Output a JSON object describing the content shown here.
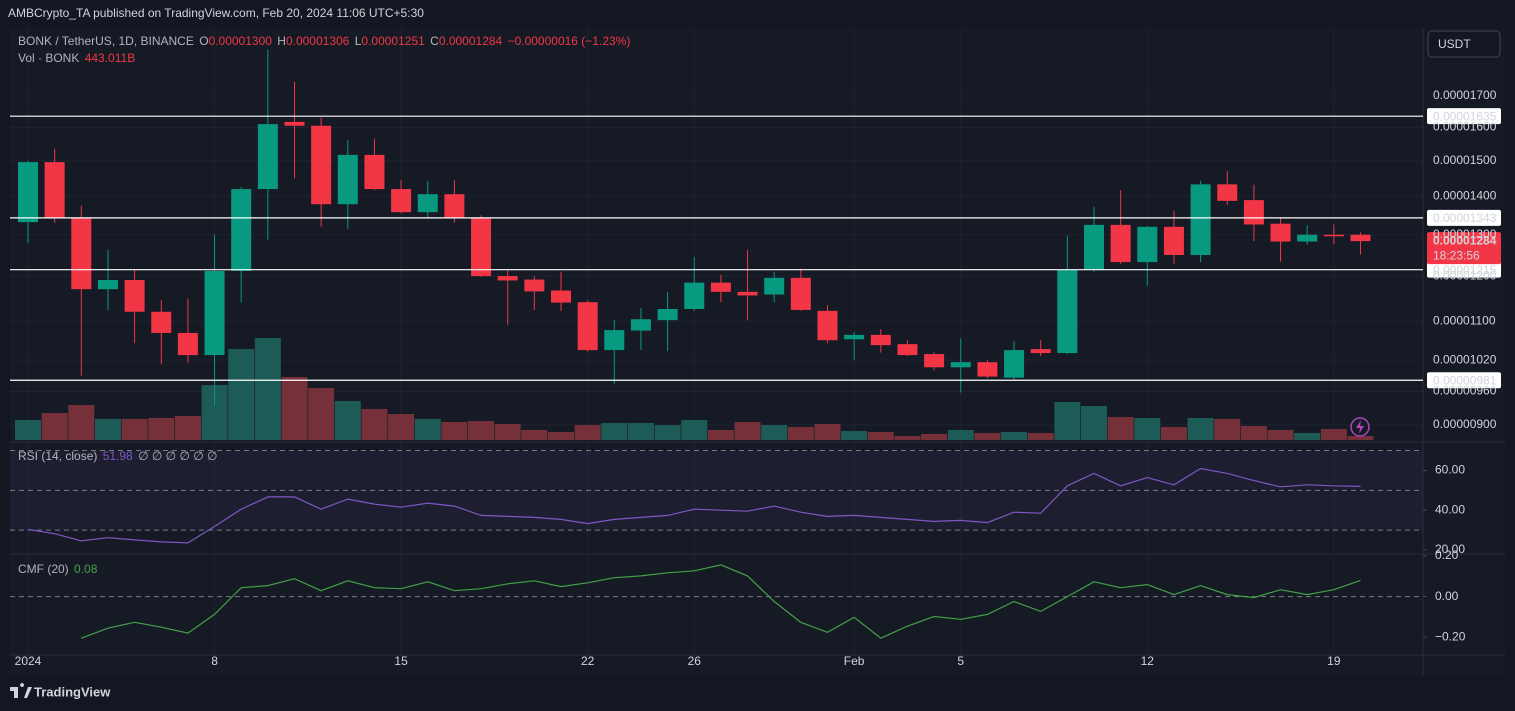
{
  "header": {
    "publisher": "AMBCrypto_TA published on TradingView.com, Feb 20, 2024 11:06 UTC+5:30"
  },
  "currency_button": "USDT",
  "footer": {
    "brand": "TradingView"
  },
  "chart_data": [
    {
      "type": "candlestick",
      "symbol": "BONK / TetherUS, 1D, BINANCE",
      "ohlc_keys": [
        "O",
        "H",
        "L",
        "C"
      ],
      "ohlc_labels": [
        "0.00001300",
        "0.00001306",
        "0.00001251",
        "0.00001284"
      ],
      "change_label": "−0.00000016 (−1.23%)",
      "categories": [
        "2024",
        null,
        null,
        null,
        null,
        null,
        null,
        "8",
        null,
        null,
        null,
        null,
        null,
        null,
        "15",
        null,
        null,
        null,
        null,
        null,
        null,
        "22",
        null,
        null,
        null,
        "26",
        null,
        null,
        null,
        null,
        null,
        "Feb",
        null,
        null,
        null,
        "5",
        null,
        null,
        null,
        null,
        null,
        null,
        "12",
        null,
        null,
        null,
        null,
        null,
        null,
        "19",
        null
      ],
      "open": [
        1.332e-05,
        1.496e-05,
        1.343e-05,
        1.17e-05,
        1.191e-05,
        1.12e-05,
        1.075e-05,
        1.03e-05,
        1.212e-05,
        1.42e-05,
        1.617e-05,
        1.605e-05,
        1.379e-05,
        1.517e-05,
        1.42e-05,
        1.358e-05,
        1.406e-05,
        1.343e-05,
        1.2e-05,
        1.192e-05,
        1.167e-05,
        1.141e-05,
        1.04e-05,
        1.08e-05,
        1.102e-05,
        1.126e-05,
        1.185e-05,
        1.164e-05,
        1.158e-05,
        1.196e-05,
        1.122e-05,
        1.062e-05,
        1.071e-05,
        1.052e-05,
        1.032e-05,
        1.006e-05,
        1.016e-05,
        9.86e-06,
        1.042e-05,
        1.034e-05,
        1.215e-05,
        1.325e-05,
        1.233e-05,
        1.32e-05,
        1.25e-05,
        1.433e-05,
        1.39e-05,
        1.328e-05,
        1.283e-05,
        1.3e-05,
        1.3e-05
      ],
      "high": [
        1.5e-05,
        1.535e-05,
        1.375e-05,
        1.262e-05,
        1.215e-05,
        1.145e-05,
        1.149e-05,
        1.3e-05,
        1.426e-05,
        1.86e-05,
        1.747e-05,
        1.63e-05,
        1.561e-05,
        1.565e-05,
        1.445e-05,
        1.442e-05,
        1.445e-05,
        1.35e-05,
        1.214e-05,
        1.2e-05,
        1.21e-05,
        1.145e-05,
        1.102e-05,
        1.128e-05,
        1.164e-05,
        1.245e-05,
        1.203e-05,
        1.262e-05,
        1.21e-05,
        1.217e-05,
        1.134e-05,
        1.077e-05,
        1.083e-05,
        1.06e-05,
        1.036e-05,
        1.064e-05,
        1.02e-05,
        1.058e-05,
        1.06e-05,
        1.298e-05,
        1.372e-05,
        1.417e-05,
        1.322e-05,
        1.362e-05,
        1.443e-05,
        1.47e-05,
        1.432e-05,
        1.343e-05,
        1.324e-05,
        1.326e-05,
        1.306e-05
      ],
      "low": [
        1.279e-05,
        1.33e-05,
        9.9e-06,
        1.124e-05,
        1.054e-05,
        1.012e-05,
        1.015e-05,
        9.35e-06,
        1.14e-05,
        1.287e-05,
        1.45e-05,
        1.32e-05,
        1.315e-05,
        1.417e-05,
        1.355e-05,
        1.343e-05,
        1.33e-05,
        1.198e-05,
        1.092e-05,
        1.124e-05,
        1.122e-05,
        1.037e-05,
        9.74e-06,
        1.04e-05,
        1.038e-05,
        1.122e-05,
        1.141e-05,
        1.102e-05,
        1.141e-05,
        1.122e-05,
        1.054e-05,
        1.02e-05,
        1.035e-05,
        1.028e-05,
        1e-05,
        9.58e-06,
        9.85e-06,
        9.81e-06,
        1.028e-05,
        1.032e-05,
        1.21e-05,
        1.229e-05,
        1.178e-05,
        1.228e-05,
        1.233e-05,
        1.377e-05,
        1.284e-05,
        1.234e-05,
        1.275e-05,
        1.277e-05,
        1.251e-05
      ],
      "close": [
        1.496e-05,
        1.343e-05,
        1.17e-05,
        1.191e-05,
        1.12e-05,
        1.075e-05,
        1.03e-05,
        1.212e-05,
        1.42e-05,
        1.61e-05,
        1.605e-05,
        1.379e-05,
        1.517e-05,
        1.42e-05,
        1.358e-05,
        1.406e-05,
        1.343e-05,
        1.2e-05,
        1.19e-05,
        1.165e-05,
        1.14e-05,
        1.04e-05,
        1.081e-05,
        1.104e-05,
        1.126e-05,
        1.185e-05,
        1.164e-05,
        1.156e-05,
        1.196e-05,
        1.124e-05,
        1.06e-05,
        1.071e-05,
        1.05e-05,
        1.03e-05,
        1.006e-05,
        1.016e-05,
        9.88e-06,
        1.04e-05,
        1.034e-05,
        1.215e-05,
        1.325e-05,
        1.233e-05,
        1.32e-05,
        1.25e-05,
        1.433e-05,
        1.388e-05,
        1.326e-05,
        1.283e-05,
        1.3e-05,
        1.296e-05,
        1.284e-05
      ],
      "up_color": "#089981",
      "down_color": "#f23645",
      "log_scale": true,
      "grid": true,
      "ylim": [
        8.74e-06,
        1.939e-05
      ],
      "yticks": [
        {
          "value": 1.7e-05,
          "label": "0.00001700"
        },
        {
          "value": 1.6e-05,
          "label": "0.00001600"
        },
        {
          "value": 1.5e-05,
          "label": "0.00001500"
        },
        {
          "value": 1.4e-05,
          "label": "0.00001400"
        },
        {
          "value": 1.3e-05,
          "label": "0.00001300"
        },
        {
          "value": 1.2e-05,
          "label": "0.00001200"
        },
        {
          "value": 1.1e-05,
          "label": "0.00001100"
        },
        {
          "value": 1.02e-05,
          "label": "0.00001020"
        },
        {
          "value": 9.6e-06,
          "label": "0.00000960"
        },
        {
          "value": 9e-06,
          "label": "0.00000900"
        }
      ],
      "levels": [
        {
          "value": 1.635e-05,
          "label": "0.00001635"
        },
        {
          "value": 1.343e-05,
          "label": "0.00001343"
        },
        {
          "value": 1.215e-05,
          "label": "0.00001215"
        },
        {
          "value": 9.81e-06,
          "label": "0.00000981"
        }
      ],
      "level_color": "#ffffff",
      "last_price": {
        "value": 1.284e-05,
        "label": "0.00001284",
        "countdown": "18:23:56"
      }
    },
    {
      "type": "bar",
      "title": "Vol · BONK",
      "last_label": "443.011B",
      "values": [
        2215000000000,
        2990000000000,
        3876000000000,
        2326000000000,
        2326000000000,
        2437000000000,
        2658000000000,
        6091000000000,
        10078000000000,
        11297000000000,
        6977000000000,
        5759000000000,
        4319000000000,
        3433000000000,
        2880000000000,
        2326000000000,
        1994000000000,
        2104000000000,
        1772000000000,
        1108000000000,
        886000000000,
        1661000000000,
        1883000000000,
        1883000000000,
        1661000000000,
        2215000000000,
        1108000000000,
        1994000000000,
        1661000000000,
        1440000000000,
        1772000000000,
        997000000000,
        886000000000,
        443000000000,
        665000000000,
        1108000000000,
        775000000000,
        886000000000,
        775000000000,
        4209000000000,
        3766000000000,
        2547000000000,
        2437000000000,
        1440000000000,
        2437000000000,
        2326000000000,
        1550000000000,
        1108000000000,
        775000000000,
        1218000000000,
        443011000000
      ],
      "up_color": "#1d5b56",
      "down_color": "#76303a"
    },
    {
      "type": "line",
      "title": "RSI (14, close)",
      "extra": "∅ ∅ ∅ ∅ ∅ ∅",
      "values": [
        30.3,
        28.2,
        24.6,
        26.2,
        25.1,
        24.1,
        23.6,
        31.8,
        40.5,
        46.7,
        46.7,
        40.5,
        45.6,
        43.1,
        41.5,
        43.6,
        42.1,
        37.4,
        36.9,
        36.4,
        35.4,
        33.3,
        35.4,
        36.4,
        37.4,
        40.5,
        40,
        39.5,
        42.1,
        39,
        36.9,
        37.4,
        36.4,
        35.4,
        34.4,
        34.9,
        33.8,
        39,
        38.5,
        52.3,
        58.5,
        52.3,
        56.4,
        52.8,
        61,
        58.5,
        54.9,
        51.8,
        52.8,
        52.3,
        51.98
      ],
      "color": "#7e57c2",
      "ylim": [
        18.5,
        73.8
      ],
      "yticks": [
        {
          "value": 60,
          "label": "60.00"
        },
        {
          "value": 40,
          "label": "40.00"
        },
        {
          "value": 20,
          "label": "20.00"
        }
      ],
      "bands": [
        70,
        50,
        30
      ]
    },
    {
      "type": "line",
      "title": "CMF (20)",
      "values": [
        null,
        null,
        -0.205,
        -0.156,
        -0.127,
        -0.151,
        -0.18,
        -0.088,
        0.044,
        0.054,
        0.088,
        0.029,
        0.078,
        0.044,
        0.039,
        0.073,
        0.029,
        0.039,
        0.063,
        0.078,
        0.049,
        0.068,
        0.093,
        0.102,
        0.117,
        0.127,
        0.156,
        0.102,
        -0.024,
        -0.127,
        -0.176,
        -0.102,
        -0.205,
        -0.146,
        -0.098,
        -0.112,
        -0.088,
        -0.024,
        -0.073,
        0,
        0.073,
        0.044,
        0.059,
        0.01,
        0.054,
        0.01,
        -0.005,
        0.034,
        0.01,
        0.034,
        0.08
      ],
      "color": "#43a047",
      "ylim": [
        -0.288,
        0.205
      ],
      "yticks": [
        {
          "value": 0.2,
          "label": "0.20"
        },
        {
          "value": 0,
          "label": "0.00"
        },
        {
          "value": -0.2,
          "label": "−0.20"
        }
      ],
      "bands": [
        0
      ]
    }
  ]
}
